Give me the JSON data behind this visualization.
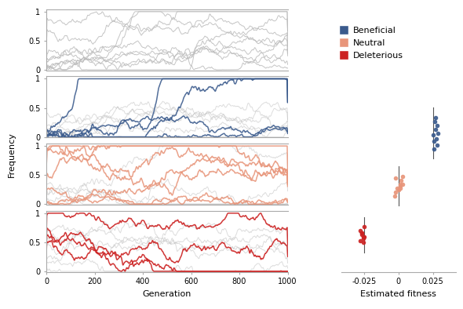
{
  "beneficial_color": "#3a5a8c",
  "neutral_color": "#e8957a",
  "deleterious_color": "#cc2222",
  "all_color": "#bbbbbb",
  "background_color": "#ffffff",
  "beneficial_true_fitness": 0.025,
  "neutral_true_fitness": 0.0,
  "deleterious_true_fitness": -0.025,
  "beneficial_dots_x": [
    0.0255,
    0.027,
    0.028,
    0.0265,
    0.0275,
    0.026,
    0.0285,
    0.027,
    0.026,
    0.028
  ],
  "beneficial_dots_y": [
    7.5,
    7.8,
    7.0,
    8.2,
    7.3,
    6.8,
    7.6,
    8.4,
    7.2,
    8.0
  ],
  "neutral_dots_x": [
    0.001,
    -0.002,
    0.003,
    -0.001,
    0.002,
    -0.003,
    0.001,
    0.0,
    -0.002,
    0.003,
    0.001
  ],
  "neutral_dots_y": [
    5.0,
    4.6,
    5.4,
    4.8,
    5.2,
    4.4,
    4.9,
    4.7,
    5.3,
    5.0,
    4.8
  ],
  "deleterious_dots_x": [
    -0.027,
    -0.026,
    -0.028,
    -0.025,
    -0.027,
    -0.026,
    -0.028,
    -0.025,
    -0.027,
    -0.026
  ],
  "deleterious_dots_y": [
    2.5,
    2.3,
    2.1,
    2.8,
    2.4,
    2.2,
    2.6,
    2.3,
    2.5,
    2.0
  ],
  "xlabel_traj": "Generation",
  "ylabel_traj": "Frequency",
  "xlabel_fitness": "Estimated fitness",
  "legend_labels": [
    "Beneficial",
    "Neutral",
    "Deleterious"
  ],
  "xticks_traj": [
    0,
    200,
    400,
    600,
    800,
    1000
  ],
  "yticks_traj": [
    0,
    0.5,
    1
  ],
  "xticks_fitness": [
    -0.025,
    0,
    0.025
  ],
  "spine_color": "#aaaaaa"
}
